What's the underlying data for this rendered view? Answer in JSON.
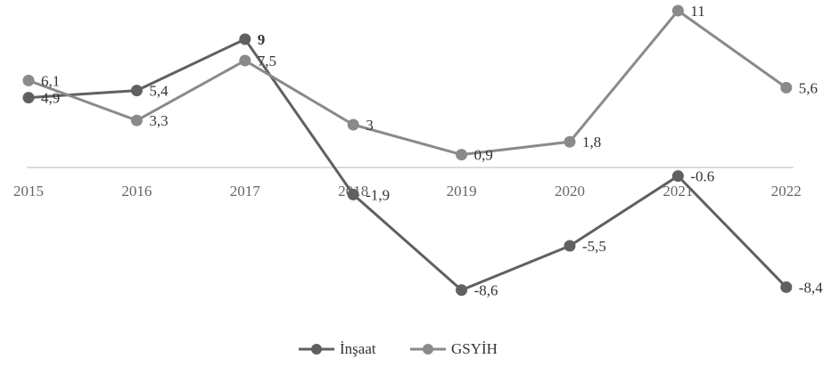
{
  "chart_data": {
    "type": "line",
    "categories": [
      "2015",
      "2016",
      "2017",
      "2018",
      "2019",
      "2020",
      "2021",
      "2022"
    ],
    "series": [
      {
        "name": "İnşaat",
        "color": "#606060",
        "values": [
          4.9,
          5.4,
          9,
          -1.9,
          -8.6,
          -5.5,
          -0.6,
          -8.4
        ],
        "value_labels": [
          "4,9",
          "5,4",
          "9",
          "-1,9",
          "-8,6",
          "-5,5",
          "-0.6",
          "-8,4"
        ]
      },
      {
        "name": "GSYİH",
        "color": "#8a8a8a",
        "values": [
          6.1,
          3.3,
          7.5,
          3,
          0.9,
          1.8,
          11,
          5.6
        ],
        "value_labels": [
          "6,1",
          "3,3",
          "7,5",
          "3",
          "0,9",
          "1,8",
          "11",
          "5,6"
        ]
      }
    ],
    "ylim": [
      -10,
      12
    ],
    "legend": "bottom"
  }
}
